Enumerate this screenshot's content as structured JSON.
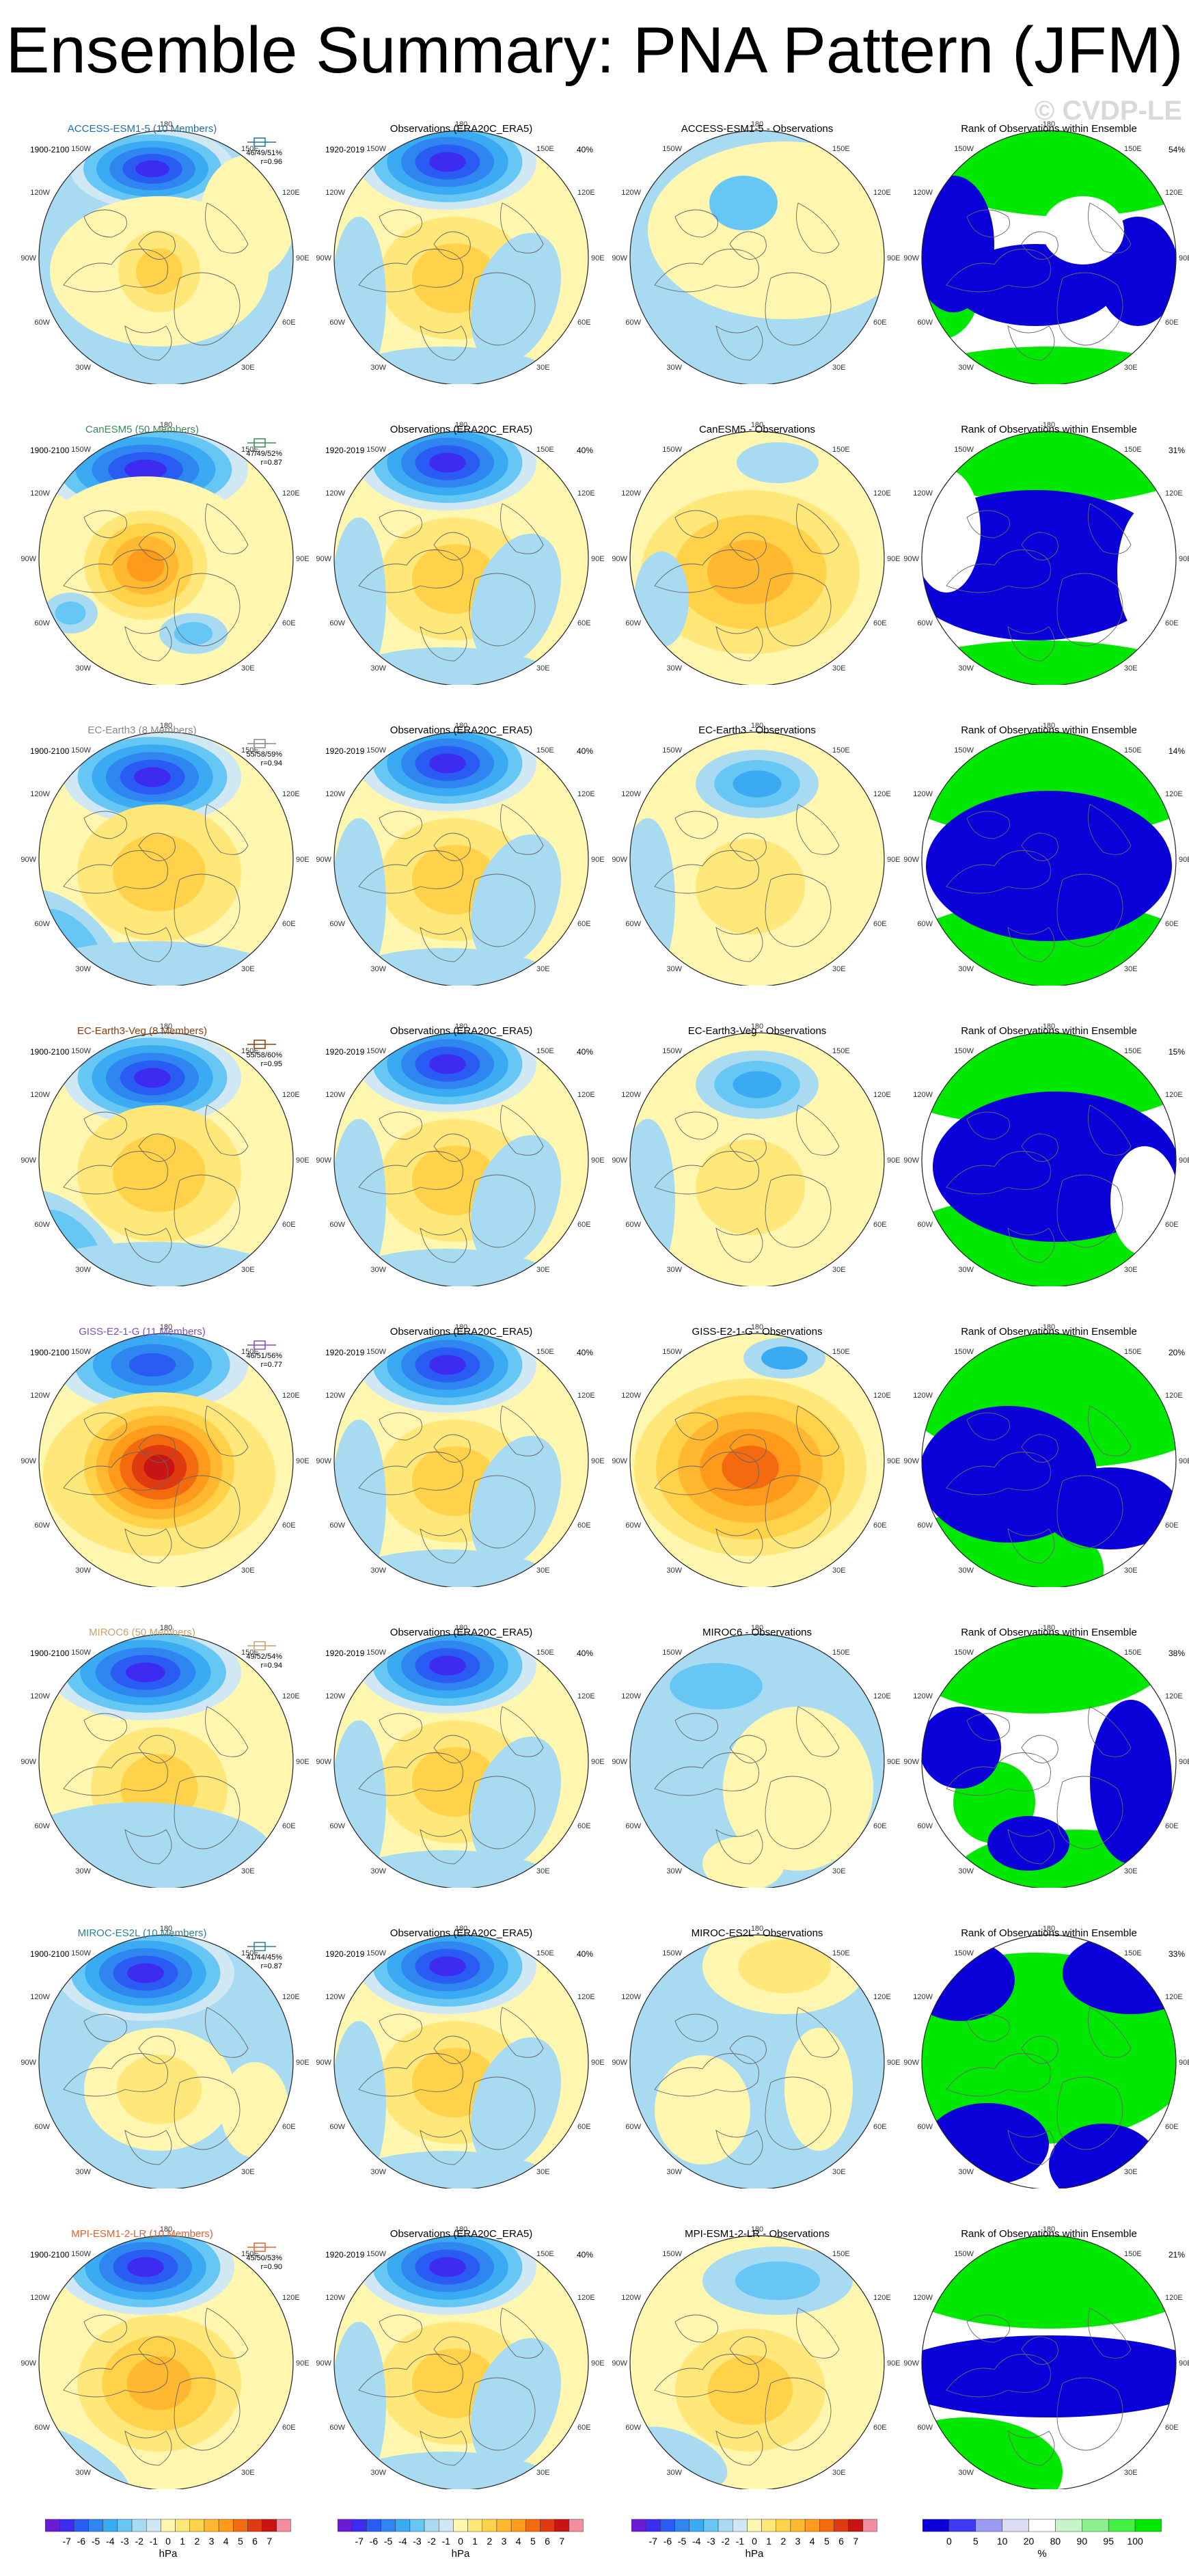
{
  "title": "Ensemble Summary: PNA Pattern (JFM)",
  "watermark": "© CVDP-LE",
  "obs_title": "Observations (ERA20C_ERA5)",
  "rank_title": "Rank of Observations within Ensemble",
  "model_years": "1900-2100",
  "obs_years": "1920-2019",
  "obs_pct": "40%",
  "rows": [
    {
      "model": "ACCESS-ESM1-5 (10 Members)",
      "color": "#1b6fa8",
      "diff": "ACCESS-ESM1-5 - Observations",
      "stat1": "46/49/51%",
      "stat2": "r=0.96",
      "rank_pct": "54%"
    },
    {
      "model": "CanESM5 (50 Members)",
      "color": "#3a8a5a",
      "diff": "CanESM5 - Observations",
      "stat1": "47/49/52%",
      "stat2": "r=0.87",
      "rank_pct": "31%"
    },
    {
      "model": "EC-Earth3 (8 Members)",
      "color": "#888888",
      "diff": "EC-Earth3 - Observations",
      "stat1": "55/58/59%",
      "stat2": "r=0.94",
      "rank_pct": "14%"
    },
    {
      "model": "EC-Earth3-Veg (8 Members)",
      "color": "#8b3a0e",
      "diff": "EC-Earth3-Veg - Observations",
      "stat1": "55/58/60%",
      "stat2": "r=0.95",
      "rank_pct": "15%"
    },
    {
      "model": "GISS-E2-1-G (11 Members)",
      "color": "#7b4fc2",
      "diff": "GISS-E2-1-G - Observations",
      "stat1": "46/51/56%",
      "stat2": "r=0.77",
      "rank_pct": "20%"
    },
    {
      "model": "MIROC6 (50 Members)",
      "color": "#c8a070",
      "diff": "MIROC6 - Observations",
      "stat1": "49/52/54%",
      "stat2": "r=0.94",
      "rank_pct": "38%"
    },
    {
      "model": "MIROC-ES2L (10 Members)",
      "color": "#2f7f8f",
      "diff": "MIROC-ES2L - Observations",
      "stat1": "41/44/45%",
      "stat2": "r=0.87",
      "rank_pct": "33%"
    },
    {
      "model": "MPI-ESM1-2-LR (10 Members)",
      "color": "#e06030",
      "diff": "MPI-ESM1-2-LR - Observations",
      "stat1": "45/50/53%",
      "stat2": "r=0.90",
      "rank_pct": "21%"
    }
  ],
  "map_labels": {
    "top": "180",
    "bottom": "0",
    "ul": "150W",
    "ur": "150E",
    "ml": "120W",
    "mr": "120E",
    "l": "90W",
    "r": "90E",
    "ll": "60W",
    "lr": "60E",
    "bl": "30W",
    "br": "30E"
  },
  "hpa_ticks": [
    "-7",
    "-6",
    "-5",
    "-4",
    "-3",
    "-2",
    "-1",
    "0",
    "1",
    "2",
    "3",
    "4",
    "5",
    "6",
    "7"
  ],
  "hpa_unit": "hPa",
  "rank_ticks": [
    "0",
    "5",
    "10",
    "20",
    "80",
    "90",
    "95",
    "100"
  ],
  "rank_unit": "%",
  "colors": {
    "hpa_scale": [
      "#6a1bd6",
      "#3d2cf0",
      "#2a5cf4",
      "#2f86f0",
      "#3aaaf2",
      "#66c6f4",
      "#a8dbf2",
      "#cfe8f4",
      "#fff6b0",
      "#ffe77a",
      "#ffd24a",
      "#ffb830",
      "#ff9a1a",
      "#f46a0e",
      "#e03a10",
      "#c81414",
      "#f28ea0"
    ],
    "rank_scale": [
      "#0a00d8",
      "#3b3bf0",
      "#9a9af2",
      "#dcdcf4",
      "#ffffff",
      "#c8f5c8",
      "#8cf08c",
      "#44f044",
      "#00e800"
    ]
  }
}
